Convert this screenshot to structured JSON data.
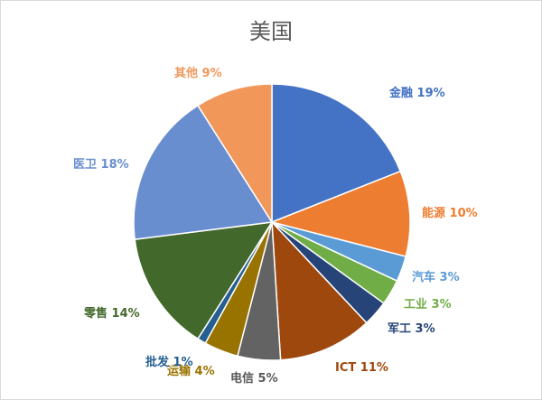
{
  "chart_data": {
    "type": "pie",
    "title": "美国",
    "start_angle_deg": 0,
    "direction": "clockwise",
    "slices": [
      {
        "label": "金融",
        "value": 19,
        "display": "金融 19%",
        "color": "#4472C4"
      },
      {
        "label": "能源",
        "value": 10,
        "display": "能源 10%",
        "color": "#ED7D31"
      },
      {
        "label": "汽车",
        "value": 3,
        "display": "汽车 3%",
        "color": "#5B9BD5"
      },
      {
        "label": "工业",
        "value": 3,
        "display": "工业 3%",
        "color": "#70AD47"
      },
      {
        "label": "军工",
        "value": 3,
        "display": "军工 3%",
        "color": "#264478"
      },
      {
        "label": "ICT",
        "value": 11,
        "display": "ICT 11%",
        "color": "#9E480E"
      },
      {
        "label": "电信",
        "value": 5,
        "display": "电信 5%",
        "color": "#636363"
      },
      {
        "label": "运输",
        "value": 4,
        "display": "运输 4%",
        "color": "#997300"
      },
      {
        "label": "批发",
        "value": 1,
        "display": "批发 1%",
        "color": "#255E91"
      },
      {
        "label": "零售",
        "value": 14,
        "display": "零售 14%",
        "color": "#43682B"
      },
      {
        "label": "医卫",
        "value": 18,
        "display": "医卫 18%",
        "color": "#698ED0"
      },
      {
        "label": "其他",
        "value": 9,
        "display": "其他 9%",
        "color": "#F1975A"
      }
    ]
  }
}
